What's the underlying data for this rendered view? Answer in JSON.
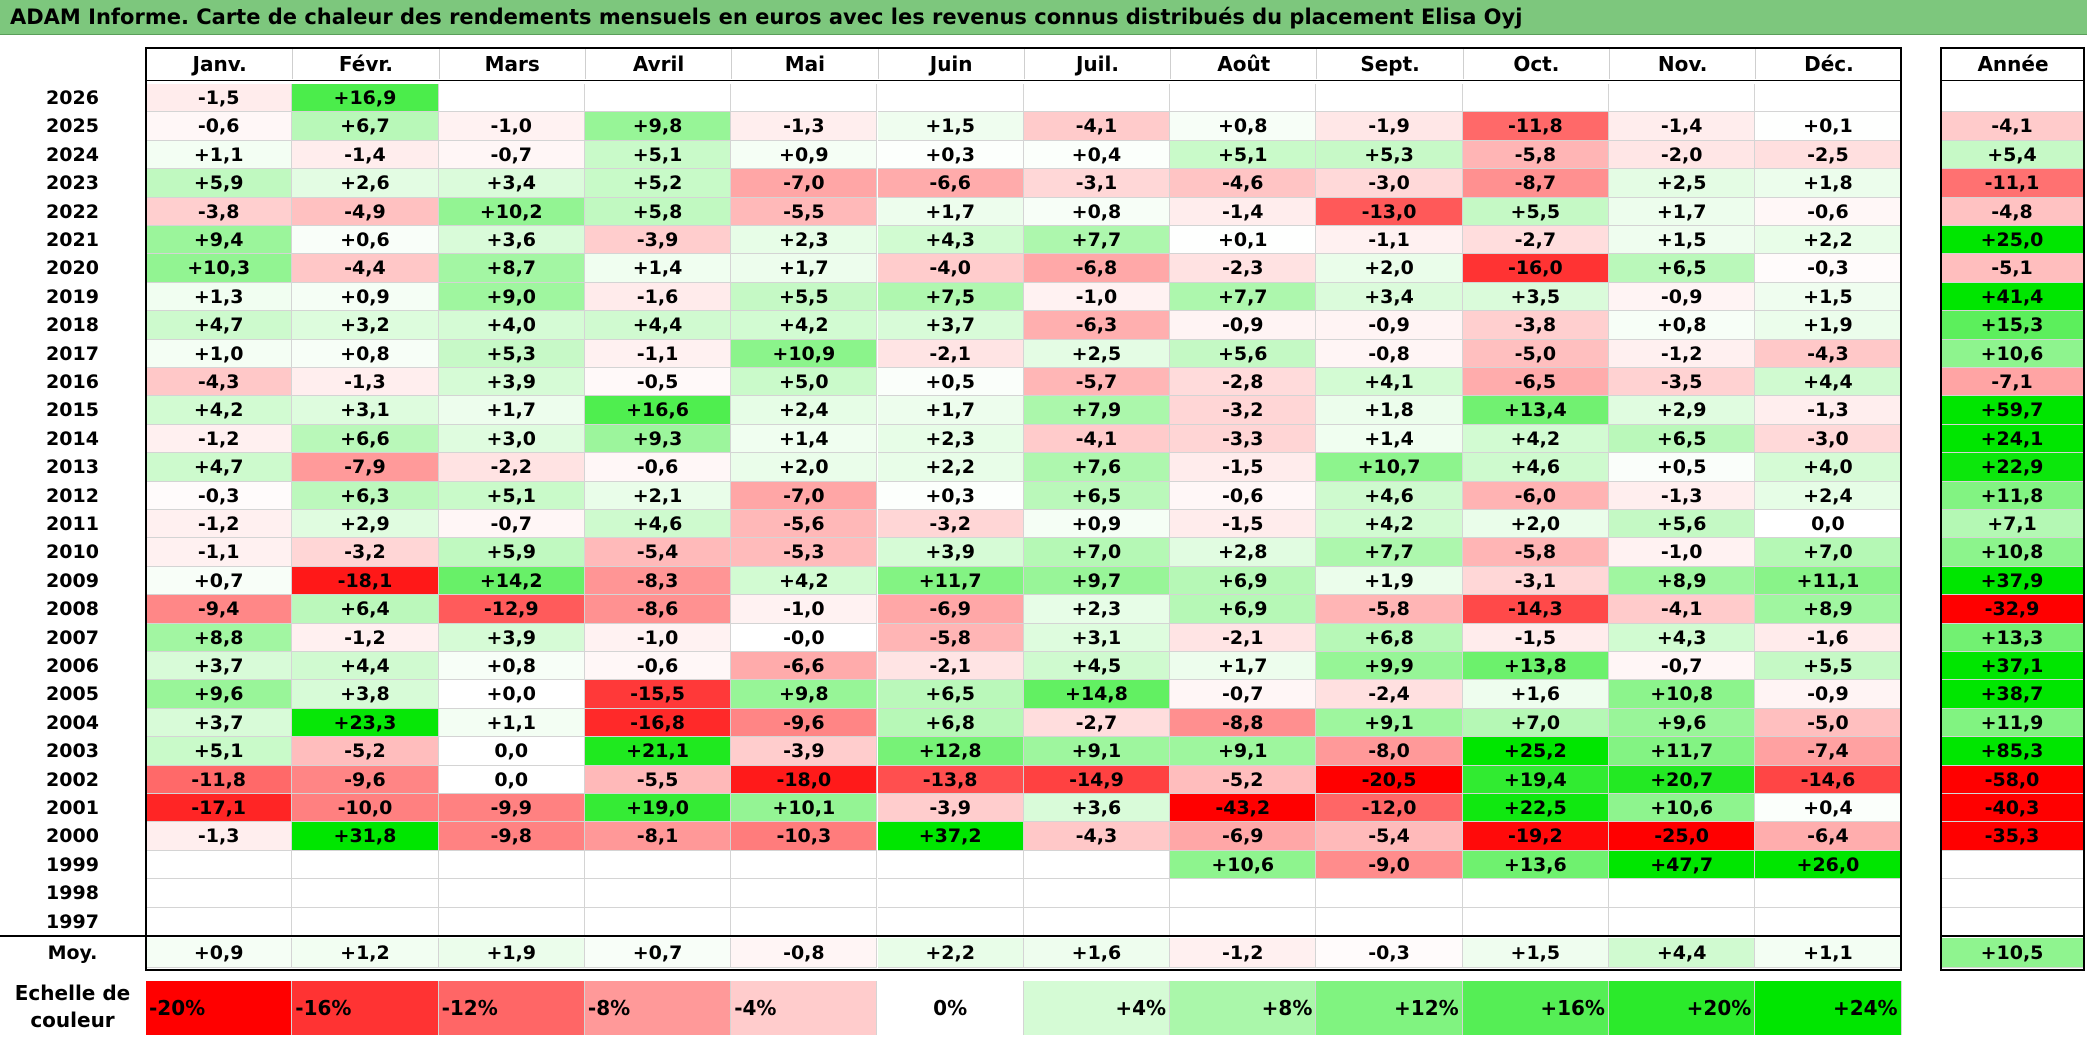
{
  "title": "ADAM Informe. Carte de chaleur des rendements mensuels en euros avec les revenus connus distribués du placement Elisa Oyj",
  "chart_data": {
    "type": "heatmap",
    "title": "ADAM Informe. Carte de chaleur des rendements mensuels en euros avec les revenus connus distribués du placement Elisa Oyj",
    "columns": [
      "Janv.",
      "Févr.",
      "Mars",
      "Avril",
      "Mai",
      "Juin",
      "Juil.",
      "Août",
      "Sept.",
      "Oct.",
      "Nov.",
      "Déc."
    ],
    "year_header": "Année",
    "rows": [
      {
        "year": "2026",
        "values": [
          "-1,5",
          "+16,9",
          "",
          "",
          "",
          "",
          "",
          "",
          "",
          "",
          "",
          ""
        ],
        "annual": ""
      },
      {
        "year": "2025",
        "values": [
          "-0,6",
          "+6,7",
          "-1,0",
          "+9,8",
          "-1,3",
          "+1,5",
          "-4,1",
          "+0,8",
          "-1,9",
          "-11,8",
          "-1,4",
          "+0,1"
        ],
        "annual": "-4,1"
      },
      {
        "year": "2024",
        "values": [
          "+1,1",
          "-1,4",
          "-0,7",
          "+5,1",
          "+0,9",
          "+0,3",
          "+0,4",
          "+5,1",
          "+5,3",
          "-5,8",
          "-2,0",
          "-2,5"
        ],
        "annual": "+5,4"
      },
      {
        "year": "2023",
        "values": [
          "+5,9",
          "+2,6",
          "+3,4",
          "+5,2",
          "-7,0",
          "-6,6",
          "-3,1",
          "-4,6",
          "-3,0",
          "-8,7",
          "+2,5",
          "+1,8"
        ],
        "annual": "-11,1"
      },
      {
        "year": "2022",
        "values": [
          "-3,8",
          "-4,9",
          "+10,2",
          "+5,8",
          "-5,5",
          "+1,7",
          "+0,8",
          "-1,4",
          "-13,0",
          "+5,5",
          "+1,7",
          "-0,6"
        ],
        "annual": "-4,8"
      },
      {
        "year": "2021",
        "values": [
          "+9,4",
          "+0,6",
          "+3,6",
          "-3,9",
          "+2,3",
          "+4,3",
          "+7,7",
          "+0,1",
          "-1,1",
          "-2,7",
          "+1,5",
          "+2,2"
        ],
        "annual": "+25,0"
      },
      {
        "year": "2020",
        "values": [
          "+10,3",
          "-4,4",
          "+8,7",
          "+1,4",
          "+1,7",
          "-4,0",
          "-6,8",
          "-2,3",
          "+2,0",
          "-16,0",
          "+6,5",
          "-0,3"
        ],
        "annual": "-5,1"
      },
      {
        "year": "2019",
        "values": [
          "+1,3",
          "+0,9",
          "+9,0",
          "-1,6",
          "+5,5",
          "+7,5",
          "-1,0",
          "+7,7",
          "+3,4",
          "+3,5",
          "-0,9",
          "+1,5"
        ],
        "annual": "+41,4"
      },
      {
        "year": "2018",
        "values": [
          "+4,7",
          "+3,2",
          "+4,0",
          "+4,4",
          "+4,2",
          "+3,7",
          "-6,3",
          "-0,9",
          "-0,9",
          "-3,8",
          "+0,8",
          "+1,9"
        ],
        "annual": "+15,3"
      },
      {
        "year": "2017",
        "values": [
          "+1,0",
          "+0,8",
          "+5,3",
          "-1,1",
          "+10,9",
          "-2,1",
          "+2,5",
          "+5,6",
          "-0,8",
          "-5,0",
          "-1,2",
          "-4,3"
        ],
        "annual": "+10,6"
      },
      {
        "year": "2016",
        "values": [
          "-4,3",
          "-1,3",
          "+3,9",
          "-0,5",
          "+5,0",
          "+0,5",
          "-5,7",
          "-2,8",
          "+4,1",
          "-6,5",
          "-3,5",
          "+4,4"
        ],
        "annual": "-7,1"
      },
      {
        "year": "2015",
        "values": [
          "+4,2",
          "+3,1",
          "+1,7",
          "+16,6",
          "+2,4",
          "+1,7",
          "+7,9",
          "-3,2",
          "+1,8",
          "+13,4",
          "+2,9",
          "-1,3"
        ],
        "annual": "+59,7"
      },
      {
        "year": "2014",
        "values": [
          "-1,2",
          "+6,6",
          "+3,0",
          "+9,3",
          "+1,4",
          "+2,3",
          "-4,1",
          "-3,3",
          "+1,4",
          "+4,2",
          "+6,5",
          "-3,0"
        ],
        "annual": "+24,1"
      },
      {
        "year": "2013",
        "values": [
          "+4,7",
          "-7,9",
          "-2,2",
          "-0,6",
          "+2,0",
          "+2,2",
          "+7,6",
          "-1,5",
          "+10,7",
          "+4,6",
          "+0,5",
          "+4,0"
        ],
        "annual": "+22,9"
      },
      {
        "year": "2012",
        "values": [
          "-0,3",
          "+6,3",
          "+5,1",
          "+2,1",
          "-7,0",
          "+0,3",
          "+6,5",
          "-0,6",
          "+4,6",
          "-6,0",
          "-1,3",
          "+2,4"
        ],
        "annual": "+11,8"
      },
      {
        "year": "2011",
        "values": [
          "-1,2",
          "+2,9",
          "-0,7",
          "+4,6",
          "-5,6",
          "-3,2",
          "+0,9",
          "-1,5",
          "+4,2",
          "+2,0",
          "+5,6",
          "0,0"
        ],
        "annual": "+7,1"
      },
      {
        "year": "2010",
        "values": [
          "-1,1",
          "-3,2",
          "+5,9",
          "-5,4",
          "-5,3",
          "+3,9",
          "+7,0",
          "+2,8",
          "+7,7",
          "-5,8",
          "-1,0",
          "+7,0"
        ],
        "annual": "+10,8"
      },
      {
        "year": "2009",
        "values": [
          "+0,7",
          "-18,1",
          "+14,2",
          "-8,3",
          "+4,2",
          "+11,7",
          "+9,7",
          "+6,9",
          "+1,9",
          "-3,1",
          "+8,9",
          "+11,1"
        ],
        "annual": "+37,9"
      },
      {
        "year": "2008",
        "values": [
          "-9,4",
          "+6,4",
          "-12,9",
          "-8,6",
          "-1,0",
          "-6,9",
          "+2,3",
          "+6,9",
          "-5,8",
          "-14,3",
          "-4,1",
          "+8,9"
        ],
        "annual": "-32,9"
      },
      {
        "year": "2007",
        "values": [
          "+8,8",
          "-1,2",
          "+3,9",
          "-1,0",
          "-0,0",
          "-5,8",
          "+3,1",
          "-2,1",
          "+6,8",
          "-1,5",
          "+4,3",
          "-1,6"
        ],
        "annual": "+13,3"
      },
      {
        "year": "2006",
        "values": [
          "+3,7",
          "+4,4",
          "+0,8",
          "-0,6",
          "-6,6",
          "-2,1",
          "+4,5",
          "+1,7",
          "+9,9",
          "+13,8",
          "-0,7",
          "+5,5"
        ],
        "annual": "+37,1"
      },
      {
        "year": "2005",
        "values": [
          "+9,6",
          "+3,8",
          "+0,0",
          "-15,5",
          "+9,8",
          "+6,5",
          "+14,8",
          "-0,7",
          "-2,4",
          "+1,6",
          "+10,8",
          "-0,9"
        ],
        "annual": "+38,7"
      },
      {
        "year": "2004",
        "values": [
          "+3,7",
          "+23,3",
          "+1,1",
          "-16,8",
          "-9,6",
          "+6,8",
          "-2,7",
          "-8,8",
          "+9,1",
          "+7,0",
          "+9,6",
          "-5,0"
        ],
        "annual": "+11,9"
      },
      {
        "year": "2003",
        "values": [
          "+5,1",
          "-5,2",
          "0,0",
          "+21,1",
          "-3,9",
          "+12,8",
          "+9,1",
          "+9,1",
          "-8,0",
          "+25,2",
          "+11,7",
          "-7,4"
        ],
        "annual": "+85,3"
      },
      {
        "year": "2002",
        "values": [
          "-11,8",
          "-9,6",
          "0,0",
          "-5,5",
          "-18,0",
          "-13,8",
          "-14,9",
          "-5,2",
          "-20,5",
          "+19,4",
          "+20,7",
          "-14,6"
        ],
        "annual": "-58,0"
      },
      {
        "year": "2001",
        "values": [
          "-17,1",
          "-10,0",
          "-9,9",
          "+19,0",
          "+10,1",
          "-3,9",
          "+3,6",
          "-43,2",
          "-12,0",
          "+22,5",
          "+10,6",
          "+0,4"
        ],
        "annual": "-40,3"
      },
      {
        "year": "2000",
        "values": [
          "-1,3",
          "+31,8",
          "-9,8",
          "-8,1",
          "-10,3",
          "+37,2",
          "-4,3",
          "-6,9",
          "-5,4",
          "-19,2",
          "-25,0",
          "-6,4"
        ],
        "annual": "-35,3"
      },
      {
        "year": "1999",
        "values": [
          "",
          "",
          "",
          "",
          "",
          "",
          "",
          "+10,6",
          "-9,0",
          "+13,6",
          "+47,7",
          "+26,0"
        ],
        "annual": ""
      },
      {
        "year": "1998",
        "values": [
          "",
          "",
          "",
          "",
          "",
          "",
          "",
          "",
          "",
          "",
          "",
          ""
        ],
        "annual": ""
      },
      {
        "year": "1997",
        "values": [
          "",
          "",
          "",
          "",
          "",
          "",
          "",
          "",
          "",
          "",
          "",
          ""
        ],
        "annual": ""
      }
    ],
    "average_label": "Moy.",
    "average_values": [
      "+0,9",
      "+1,2",
      "+1,9",
      "+0,7",
      "-0,8",
      "+2,2",
      "+1,6",
      "-1,2",
      "-0,3",
      "+1,5",
      "+4,4",
      "+1,1"
    ],
    "average_annual": "+10,5",
    "scale_label": "Echelle de couleur",
    "scale": [
      "-20%",
      "-16%",
      "-12%",
      "-8%",
      "-4%",
      "0%",
      "+4%",
      "+8%",
      "+12%",
      "+16%",
      "+20%",
      "+24%"
    ],
    "colors": {
      "negative_max": "#ff0000",
      "neutral": "#ffffff",
      "positive_max": "#00e600",
      "title_bar": "#7dc77d"
    }
  }
}
